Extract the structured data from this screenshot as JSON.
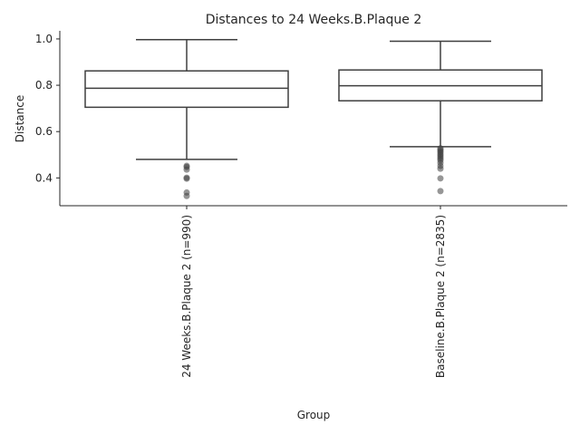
{
  "chart_data": {
    "type": "box",
    "title": "Distances to 24 Weeks.B.Plaque 2",
    "xlabel": "Group",
    "ylabel": "Distance",
    "ylim": [
      0.28,
      1.035
    ],
    "yticks": [
      0.4,
      0.6,
      0.8,
      1.0
    ],
    "ytick_labels": [
      "0.4",
      "0.6",
      "0.8",
      "1.0"
    ],
    "grid": false,
    "categories": [
      "24 Weeks.B.Plaque 2 (n=990)",
      "Baseline.B.Plaque 2 (n=2835)"
    ],
    "boxes": [
      {
        "whisker_low": 0.48,
        "q1": 0.705,
        "median": 0.787,
        "q3": 0.862,
        "whisker_high": 0.997,
        "outliers": [
          0.452,
          0.447,
          0.436,
          0.401,
          0.397,
          0.337,
          0.322
        ]
      },
      {
        "whisker_low": 0.535,
        "q1": 0.733,
        "median": 0.798,
        "q3": 0.866,
        "whisker_high": 0.99,
        "outliers": [
          0.528,
          0.522,
          0.516,
          0.51,
          0.503,
          0.497,
          0.49,
          0.483,
          0.476,
          0.465,
          0.452,
          0.44,
          0.398,
          0.343
        ]
      }
    ]
  }
}
